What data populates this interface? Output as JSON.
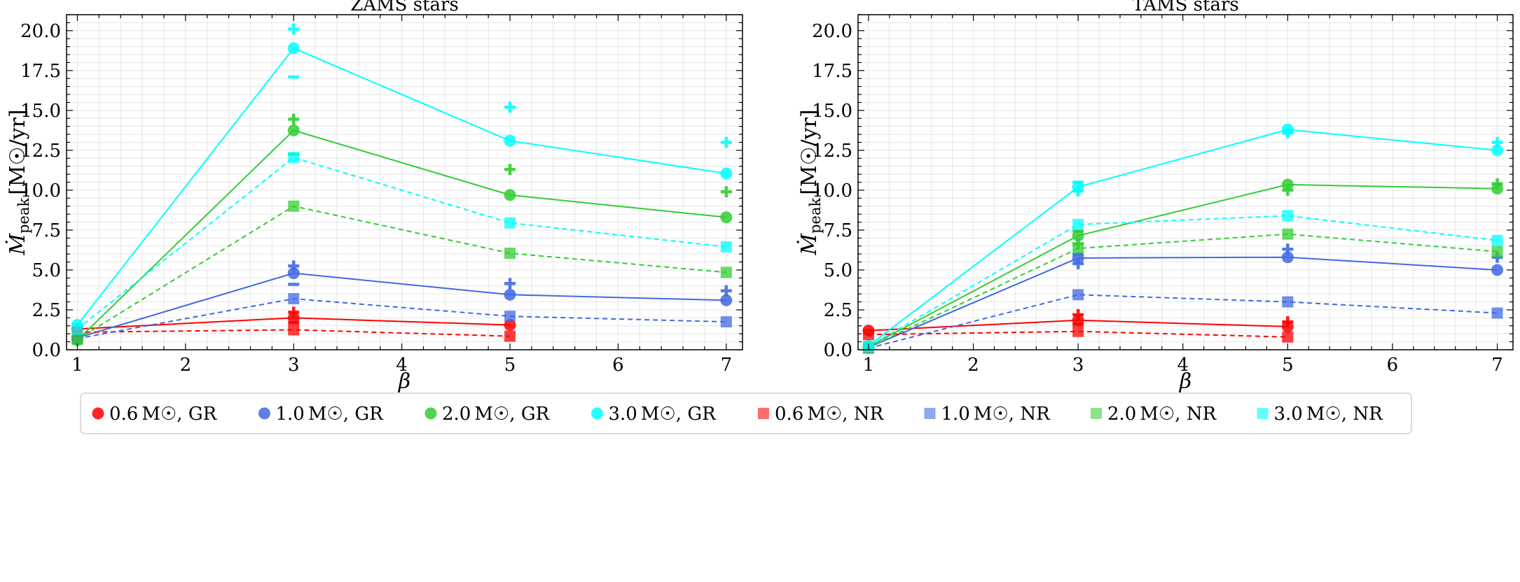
{
  "chart_data": [
    {
      "type": "line",
      "title": "ZAMS stars",
      "xlabel": "β",
      "ylabel_main": "Ṁ",
      "ylabel_sub": "peak",
      "ylabel_unit": "[M☉/yr]",
      "xlim": [
        0.9,
        7.15
      ],
      "ylim": [
        0,
        21
      ],
      "xticks": [
        1,
        2,
        3,
        4,
        5,
        6,
        7
      ],
      "yticks": [
        0.0,
        2.5,
        5.0,
        7.5,
        10.0,
        12.5,
        15.0,
        17.5,
        20.0
      ],
      "grid": true,
      "series": [
        {
          "name": "0.6 M☉, GR",
          "color": "#ff0000",
          "marker": "circle",
          "dashed": false,
          "x": [
            1,
            3,
            5
          ],
          "y": [
            1.3,
            2.0,
            1.55
          ]
        },
        {
          "name": "1.0 M☉, GR",
          "color": "#4169e1",
          "marker": "circle",
          "dashed": false,
          "x": [
            1,
            3,
            5,
            7
          ],
          "y": [
            0.75,
            4.8,
            3.45,
            3.1
          ]
        },
        {
          "name": "2.0 M☉, GR",
          "color": "#32cd32",
          "marker": "circle",
          "dashed": false,
          "x": [
            1,
            3,
            5,
            7
          ],
          "y": [
            0.6,
            13.75,
            9.7,
            8.3
          ]
        },
        {
          "name": "3.0 M☉, GR",
          "color": "#00ffff",
          "marker": "circle",
          "dashed": false,
          "x": [
            1,
            3,
            5,
            7
          ],
          "y": [
            1.55,
            18.9,
            13.1,
            11.05
          ]
        },
        {
          "name": "0.6 M☉, NR",
          "color": "#ff0000",
          "marker": "square",
          "dashed": true,
          "x": [
            1,
            3,
            5
          ],
          "y": [
            1.1,
            1.25,
            0.85
          ]
        },
        {
          "name": "1.0 M☉, NR",
          "color": "#4169e1",
          "marker": "square",
          "dashed": true,
          "x": [
            1,
            3,
            5,
            7
          ],
          "y": [
            0.7,
            3.2,
            2.1,
            1.75
          ]
        },
        {
          "name": "2.0 M☉, NR",
          "color": "#32cd32",
          "marker": "square",
          "dashed": true,
          "x": [
            1,
            3,
            5,
            7
          ],
          "y": [
            0.65,
            9.0,
            6.05,
            4.85
          ]
        },
        {
          "name": "3.0 M☉, NR",
          "color": "#00ffff",
          "marker": "square",
          "dashed": true,
          "x": [
            1,
            3,
            5,
            7
          ],
          "y": [
            1.3,
            12.05,
            7.95,
            6.45
          ]
        }
      ],
      "extra_markers": [
        {
          "color": "#ff0000",
          "marker": "plus",
          "x": 3,
          "y": 2.35
        },
        {
          "color": "#ff0000",
          "marker": "minus",
          "x": 3,
          "y": 1.7
        },
        {
          "color": "#4169e1",
          "marker": "plus",
          "x": 3,
          "y": 5.25
        },
        {
          "color": "#4169e1",
          "marker": "minus",
          "x": 3,
          "y": 4.1
        },
        {
          "color": "#4169e1",
          "marker": "plus",
          "x": 5,
          "y": 4.15
        },
        {
          "color": "#4169e1",
          "marker": "plus",
          "x": 7,
          "y": 3.7
        },
        {
          "color": "#32cd32",
          "marker": "plus",
          "x": 3,
          "y": 14.45
        },
        {
          "color": "#32cd32",
          "marker": "minus",
          "x": 3,
          "y": 12.25
        },
        {
          "color": "#32cd32",
          "marker": "plus",
          "x": 5,
          "y": 11.3
        },
        {
          "color": "#32cd32",
          "marker": "plus",
          "x": 7,
          "y": 9.9
        },
        {
          "color": "#00ffff",
          "marker": "plus",
          "x": 3,
          "y": 20.1
        },
        {
          "color": "#00ffff",
          "marker": "minus",
          "x": 3,
          "y": 17.1
        },
        {
          "color": "#00ffff",
          "marker": "plus",
          "x": 5,
          "y": 15.2
        },
        {
          "color": "#00ffff",
          "marker": "plus",
          "x": 7,
          "y": 13.0
        }
      ]
    },
    {
      "type": "line",
      "title": "TAMS stars",
      "xlabel": "β",
      "ylabel_main": "Ṁ",
      "ylabel_sub": "peak",
      "ylabel_unit": "[M☉/yr]",
      "xlim": [
        0.9,
        7.15
      ],
      "ylim": [
        0,
        21
      ],
      "xticks": [
        1,
        2,
        3,
        4,
        5,
        6,
        7
      ],
      "yticks": [
        0.0,
        2.5,
        5.0,
        7.5,
        10.0,
        12.5,
        15.0,
        17.5,
        20.0
      ],
      "grid": true,
      "series": [
        {
          "name": "0.6 M☉, GR",
          "color": "#ff0000",
          "marker": "circle",
          "dashed": false,
          "x": [
            1,
            3,
            5
          ],
          "y": [
            1.2,
            1.85,
            1.45
          ]
        },
        {
          "name": "1.0 M☉, GR",
          "color": "#4169e1",
          "marker": "circle",
          "dashed": false,
          "x": [
            1,
            3,
            5,
            7
          ],
          "y": [
            0.15,
            5.75,
            5.8,
            5.0
          ]
        },
        {
          "name": "2.0 M☉, GR",
          "color": "#32cd32",
          "marker": "circle",
          "dashed": false,
          "x": [
            1,
            3,
            5,
            7
          ],
          "y": [
            0.2,
            7.15,
            10.35,
            10.1
          ]
        },
        {
          "name": "3.0 M☉, GR",
          "color": "#00ffff",
          "marker": "circle",
          "dashed": false,
          "x": [
            1,
            3,
            5,
            7
          ],
          "y": [
            0.25,
            10.2,
            13.8,
            12.5
          ]
        },
        {
          "name": "0.6 M☉, NR",
          "color": "#ff0000",
          "marker": "square",
          "dashed": true,
          "x": [
            1,
            3,
            5
          ],
          "y": [
            0.95,
            1.15,
            0.8
          ]
        },
        {
          "name": "1.0 M☉, NR",
          "color": "#4169e1",
          "marker": "square",
          "dashed": true,
          "x": [
            1,
            3,
            5,
            7
          ],
          "y": [
            0.1,
            3.45,
            3.0,
            2.3
          ]
        },
        {
          "name": "2.0 M☉, NR",
          "color": "#32cd32",
          "marker": "square",
          "dashed": true,
          "x": [
            1,
            3,
            5,
            7
          ],
          "y": [
            0.15,
            6.35,
            7.25,
            6.15
          ]
        },
        {
          "name": "3.0 M☉, NR",
          "color": "#00ffff",
          "marker": "square",
          "dashed": true,
          "x": [
            1,
            3,
            5,
            7
          ],
          "y": [
            0.2,
            7.85,
            8.4,
            6.85
          ]
        }
      ],
      "extra_markers": [
        {
          "color": "#ff0000",
          "marker": "plus",
          "x": 3,
          "y": 2.2
        },
        {
          "color": "#ff0000",
          "marker": "minus",
          "x": 3,
          "y": 1.6
        },
        {
          "color": "#ff0000",
          "marker": "plus",
          "x": 5,
          "y": 1.75
        },
        {
          "color": "#4169e1",
          "marker": "minus",
          "x": 3,
          "y": 6.0
        },
        {
          "color": "#4169e1",
          "marker": "plus",
          "x": 3,
          "y": 5.4
        },
        {
          "color": "#4169e1",
          "marker": "plus",
          "x": 5,
          "y": 6.3
        },
        {
          "color": "#4169e1",
          "marker": "plus",
          "x": 7,
          "y": 5.8
        },
        {
          "color": "#32cd32",
          "marker": "minus",
          "x": 3,
          "y": 7.45
        },
        {
          "color": "#32cd32",
          "marker": "plus",
          "x": 3,
          "y": 6.65
        },
        {
          "color": "#32cd32",
          "marker": "plus",
          "x": 5,
          "y": 10.0
        },
        {
          "color": "#32cd32",
          "marker": "plus",
          "x": 7,
          "y": 10.4
        },
        {
          "color": "#00ffff",
          "marker": "minus",
          "x": 3,
          "y": 10.5
        },
        {
          "color": "#00ffff",
          "marker": "plus",
          "x": 3,
          "y": 9.95
        },
        {
          "color": "#00ffff",
          "marker": "plus",
          "x": 5,
          "y": 13.6
        },
        {
          "color": "#00ffff",
          "marker": "plus",
          "x": 7,
          "y": 13.0
        }
      ]
    }
  ],
  "legend": {
    "placement": "bottom",
    "entries": [
      {
        "mass": "0.6",
        "unit": "M☉",
        "model": ", GR",
        "color": "#ff0000",
        "marker": "circle"
      },
      {
        "mass": "1.0",
        "unit": "M☉",
        "model": ", GR",
        "color": "#4169e1",
        "marker": "circle"
      },
      {
        "mass": "2.0",
        "unit": "M☉",
        "model": ", GR",
        "color": "#32cd32",
        "marker": "circle"
      },
      {
        "mass": "3.0",
        "unit": "M☉",
        "model": ", GR",
        "color": "#00ffff",
        "marker": "circle"
      },
      {
        "mass": "0.6",
        "unit": "M☉",
        "model": ", NR",
        "color": "#ff3b3b",
        "marker": "square"
      },
      {
        "mass": "1.0",
        "unit": "M☉",
        "model": ", NR",
        "color": "#6a8ae8",
        "marker": "square"
      },
      {
        "mass": "2.0",
        "unit": "M☉",
        "model": ", NR",
        "color": "#66d966",
        "marker": "square"
      },
      {
        "mass": "3.0",
        "unit": "M☉",
        "model": ", NR",
        "color": "#33ffff",
        "marker": "square"
      }
    ]
  }
}
